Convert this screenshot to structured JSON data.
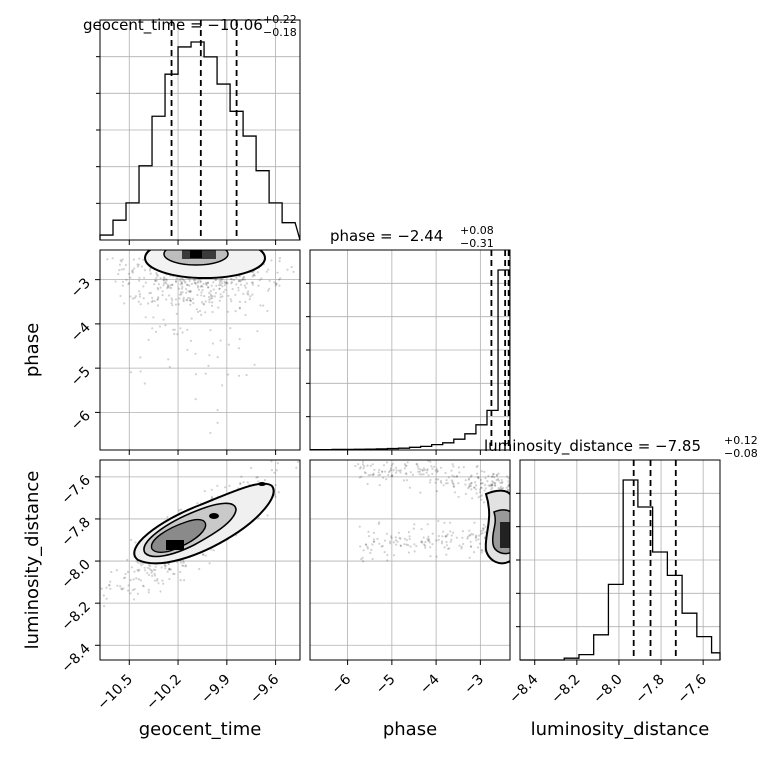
{
  "chart_data": {
    "type": "corner",
    "parameters": [
      "geocent_time",
      "phase",
      "luminosity_distance"
    ],
    "axis_labels": {
      "geocent_time": "geocent_time",
      "phase": "phase",
      "luminosity_distance": "luminosity_distance"
    },
    "ranges": {
      "geocent_time": [
        -10.68,
        -9.45
      ],
      "phase": [
        -6.85,
        -2.33
      ],
      "luminosity_distance": [
        -8.47,
        -7.52
      ]
    },
    "ticks": {
      "geocent_time": [
        "−10.5",
        "−10.2",
        "−9.9",
        "−9.6"
      ],
      "geocent_time_values": [
        -10.5,
        -10.2,
        -9.9,
        -9.6
      ],
      "phase": [
        "−6",
        "−5",
        "−4",
        "−3"
      ],
      "phase_values": [
        -6,
        -5,
        -4,
        -3
      ],
      "luminosity_distance": [
        "−8.4",
        "−8.2",
        "−8.0",
        "−7.8",
        "−7.6"
      ],
      "luminosity_distance_values": [
        -8.4,
        -8.2,
        -8.0,
        -7.8,
        -7.6
      ]
    },
    "titles": {
      "geocent_time": {
        "text": "geocent_time = −10.06",
        "plus": "+0.22",
        "minus": "−0.18"
      },
      "phase": {
        "text": "phase = −2.44",
        "plus": "+0.08",
        "minus": "−0.31"
      },
      "luminosity_distance": {
        "text": "luminosity_distance = −7.85",
        "plus": "+0.12",
        "minus": "−0.08"
      }
    },
    "quantiles": {
      "geocent_time": [
        -10.24,
        -10.06,
        -9.84
      ],
      "phase": [
        -2.75,
        -2.44,
        -2.36
      ],
      "luminosity_distance": [
        -7.93,
        -7.85,
        -7.73
      ]
    },
    "histograms": {
      "geocent_time": {
        "edges": [
          -10.68,
          -10.6,
          -10.52,
          -10.44,
          -10.36,
          -10.28,
          -10.2,
          -10.12,
          -10.04,
          -9.96,
          -9.88,
          -9.8,
          -9.72,
          -9.64,
          -9.56,
          -9.48
        ],
        "counts": [
          2,
          8,
          15,
          30,
          50,
          67,
          78,
          80,
          74,
          63,
          52,
          42,
          28,
          15,
          7
        ]
      },
      "phase": {
        "edges": [
          -6.85,
          -6.6,
          -6.35,
          -6.1,
          -5.85,
          -5.6,
          -5.35,
          -5.1,
          -4.85,
          -4.6,
          -4.35,
          -4.1,
          -3.85,
          -3.6,
          -3.35,
          -3.1,
          -2.85,
          -2.6,
          -2.33
        ],
        "counts": [
          0.2,
          0.2,
          0.3,
          0.3,
          0.4,
          0.5,
          0.6,
          0.8,
          1,
          1.5,
          2,
          3,
          4,
          6,
          9,
          14,
          22,
          100
        ]
      },
      "luminosity_distance": {
        "edges": [
          -8.47,
          -8.4,
          -8.33,
          -8.26,
          -8.19,
          -8.12,
          -8.05,
          -7.98,
          -7.91,
          -7.84,
          -7.77,
          -7.7,
          -7.63,
          -7.56,
          -7.52
        ],
        "counts": [
          0,
          0,
          0,
          1,
          3,
          14,
          42,
          100,
          85,
          60,
          47,
          26,
          13,
          4
        ]
      }
    },
    "grid": true
  }
}
